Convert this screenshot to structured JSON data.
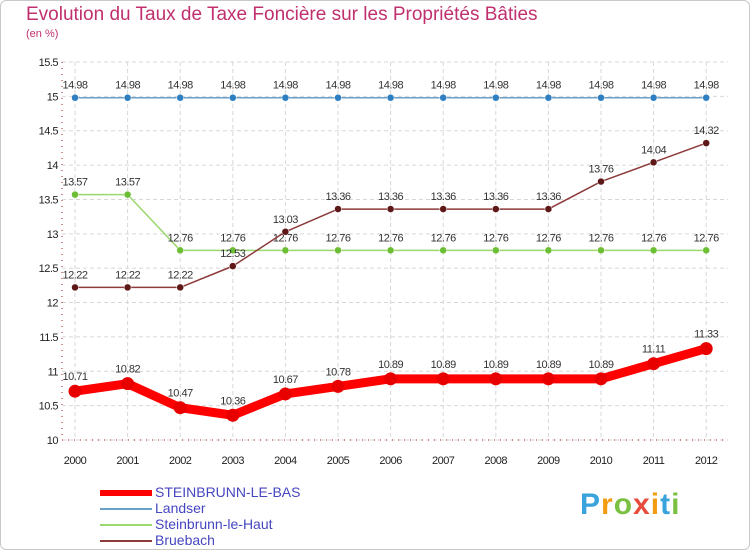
{
  "title": "Evolution du Taux de Taxe Foncière sur les Propriétés Bâties",
  "unit_label": "(en %)",
  "logo": {
    "letters": [
      {
        "ch": "P",
        "color": "#3aa3dc"
      },
      {
        "ch": "r",
        "color": "#f39c12"
      },
      {
        "ch": "o",
        "color": "#7ac143"
      },
      {
        "ch": "x",
        "color": "#e74c3c"
      },
      {
        "ch": "i",
        "color": "#f39c12"
      },
      {
        "ch": "t",
        "color": "#3aa3dc"
      },
      {
        "ch": "i",
        "color": "#7ac143"
      }
    ]
  },
  "chart_data": {
    "type": "line",
    "title": "Evolution du Taux de Taxe Foncière sur les Propriétés Bâties",
    "ylabel": "(en %)",
    "xlabel": "",
    "categories": [
      "2000",
      "2001",
      "2002",
      "2003",
      "2004",
      "2005",
      "2006",
      "2007",
      "2008",
      "2009",
      "2010",
      "2011",
      "2012"
    ],
    "ylim": [
      10,
      15.5
    ],
    "yticks": [
      10,
      10.5,
      11,
      11.5,
      12,
      12.5,
      13,
      13.5,
      14,
      14.5,
      15,
      15.5
    ],
    "ytick_labels": [
      "10",
      "10.5",
      "11",
      "11.5",
      "12",
      "12.5",
      "13",
      "13.5",
      "14",
      "14.5",
      "15",
      "15.5"
    ],
    "grid": true,
    "legend_position": "bottom-left",
    "series": [
      {
        "name": "Landser",
        "color": "#6a9fc8",
        "marker_color": "#2e7fc2",
        "values": [
          14.98,
          14.98,
          14.98,
          14.98,
          14.98,
          14.98,
          14.98,
          14.98,
          14.98,
          14.98,
          14.98,
          14.98,
          14.98
        ],
        "labels": [
          "14.98",
          "14.98",
          "14.98",
          "14.98",
          "14.98",
          "14.98",
          "14.98",
          "14.98",
          "14.98",
          "14.98",
          "14.98",
          "14.98",
          "14.98"
        ]
      },
      {
        "name": "Steinbrunn-le-Haut",
        "color": "#9ad86e",
        "marker_color": "#6cbf34",
        "values": [
          13.57,
          13.57,
          12.76,
          12.76,
          12.76,
          12.76,
          12.76,
          12.76,
          12.76,
          12.76,
          12.76,
          12.76,
          12.76
        ],
        "labels": [
          "13.57",
          "13.57",
          "12.76",
          "12.76",
          "12.76",
          "12.76",
          "12.76",
          "12.76",
          "12.76",
          "12.76",
          "12.76",
          "12.76",
          "12.76"
        ]
      },
      {
        "name": "Bruebach",
        "color": "#8c3a3a",
        "marker_color": "#5e1818",
        "values": [
          12.22,
          12.22,
          12.22,
          12.53,
          13.03,
          13.36,
          13.36,
          13.36,
          13.36,
          13.36,
          13.76,
          14.04,
          14.32
        ],
        "labels": [
          "12.22",
          "12.22",
          "12.22",
          "12.53",
          "13.03",
          "13.36",
          "13.36",
          "13.36",
          "13.36",
          "13.36",
          "13.76",
          "14.04",
          "14.32"
        ]
      },
      {
        "name": "STEINBRUNN-LE-BAS",
        "color": "#ff0000",
        "marker_color": "#e80000",
        "values": [
          10.71,
          10.82,
          10.47,
          10.36,
          10.67,
          10.78,
          10.89,
          10.89,
          10.89,
          10.89,
          10.89,
          11.11,
          11.33
        ],
        "labels": [
          "10.71",
          "10.82",
          "10.47",
          "10.36",
          "10.67",
          "10.78",
          "10.89",
          "10.89",
          "10.89",
          "10.89",
          "10.89",
          "11.11",
          "11.33"
        ]
      }
    ],
    "legend_entries": [
      "STEINBRUNN-LE-BAS",
      "Landser",
      "Steinbrunn-le-Haut",
      "Bruebach"
    ]
  }
}
